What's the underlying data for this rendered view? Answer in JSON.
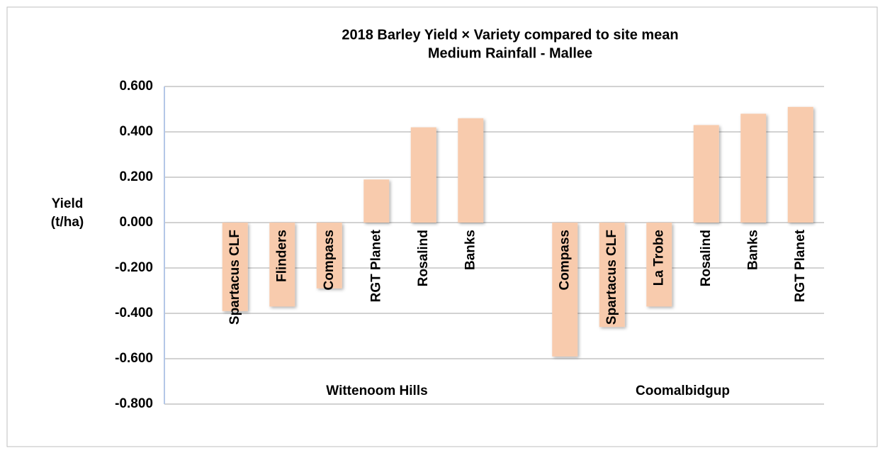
{
  "chart_data": {
    "type": "bar",
    "title": "2018 Barley Yield  × Variety compared to site mean",
    "subtitle": "Medium Rainfall - Mallee",
    "ylabel": [
      "Yield",
      "(t/ha)"
    ],
    "color": "#f8cbad",
    "grid": true,
    "ylim": [
      -0.8,
      0.6
    ],
    "yticks": [
      {
        "value": -0.8,
        "label": "-0.800"
      },
      {
        "value": -0.6,
        "label": "-0.600"
      },
      {
        "value": -0.4,
        "label": "-0.400"
      },
      {
        "value": -0.2,
        "label": "-0.200"
      },
      {
        "value": 0,
        "label": "0.000"
      },
      {
        "value": 0.2,
        "label": "0.200"
      },
      {
        "value": 0.4,
        "label": "0.400"
      },
      {
        "value": 0.6,
        "label": "0.600"
      }
    ],
    "groups": [
      {
        "name": "Wittenoom Hills",
        "categories": [
          "Spartacus CLF",
          "Flinders",
          "Compass",
          "RGT Planet",
          "Rosalind",
          "Banks"
        ],
        "values": [
          -0.39,
          -0.37,
          -0.29,
          0.19,
          0.42,
          0.46
        ]
      },
      {
        "name": "Coomalbidgup",
        "categories": [
          "Compass",
          "Spartacus CLF",
          "La Trobe",
          "Rosalind",
          "Banks",
          "RGT Planet"
        ],
        "values": [
          -0.59,
          -0.46,
          -0.37,
          0.43,
          0.48,
          0.51
        ]
      }
    ]
  }
}
